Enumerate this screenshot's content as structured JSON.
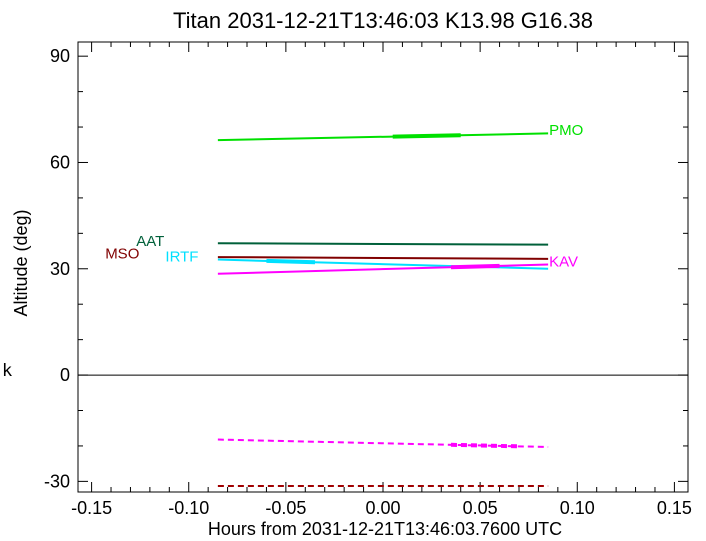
{
  "chart_data": {
    "type": "line",
    "title": "Titan 2031-12-21T13:46:03  K13.98  G16.38",
    "xlabel": "Hours from 2031-12-21T13:46:03.7600 UTC",
    "ylabel": "Altitude (deg)",
    "xlim": [
      -0.157,
      0.157
    ],
    "ylim": [
      -33,
      94
    ],
    "x_ticks": [
      -0.15,
      -0.1,
      -0.05,
      0.0,
      0.05,
      0.1,
      0.15
    ],
    "x_tick_labels": [
      "-0.15",
      "-0.10",
      "-0.05",
      "0.00",
      "0.05",
      "0.10",
      "0.15"
    ],
    "y_ticks": [
      -30,
      0,
      30,
      60,
      90
    ],
    "y_tick_labels": [
      "-30",
      "0",
      "30",
      "60",
      "90"
    ],
    "grid": false,
    "zero_line": 0,
    "series": [
      {
        "name": "PMO",
        "color": "#00e000",
        "x": [
          -0.085,
          0.085
        ],
        "y": [
          66.3,
          68.2
        ],
        "dash": false,
        "thick_segment": [
          0.005,
          0.04
        ]
      },
      {
        "name": "AAT",
        "color": "#00603a",
        "x": [
          -0.085,
          0.085
        ],
        "y": [
          37.2,
          36.8
        ],
        "dash": false
      },
      {
        "name": "MSO",
        "color": "#800000",
        "x": [
          -0.085,
          0.085
        ],
        "y": [
          33.3,
          32.8
        ],
        "dash": false
      },
      {
        "name": "IRTF",
        "color": "#00e0ff",
        "x": [
          -0.085,
          0.085
        ],
        "y": [
          32.6,
          30.0
        ],
        "dash": false,
        "thick_segment": [
          -0.06,
          -0.035
        ]
      },
      {
        "name": "KAV",
        "color": "#ff00ff",
        "x": [
          -0.085,
          0.085
        ],
        "y": [
          28.6,
          31.2
        ],
        "dash": false,
        "thick_segment": [
          0.035,
          0.06
        ]
      },
      {
        "name": "",
        "color": "#ff00ff",
        "x": [
          -0.085,
          0.085
        ],
        "y": [
          -18.2,
          -20.3
        ],
        "dash": true,
        "thick_segment": [
          0.035,
          0.07
        ]
      },
      {
        "name": "",
        "color": "#a00000",
        "x": [
          -0.085,
          0.085
        ],
        "y": [
          -31.3,
          -31.3
        ],
        "dash": true
      }
    ],
    "labels": [
      {
        "text": "PMO",
        "color": "#00e000",
        "x": 0.0855,
        "y": 69.1,
        "anchor": "start"
      },
      {
        "text": "AAT",
        "color": "#00603a",
        "x": -0.127,
        "y": 37.9,
        "anchor": "start"
      },
      {
        "text": "MSO",
        "color": "#800000",
        "x": -0.143,
        "y": 34.3,
        "anchor": "start"
      },
      {
        "text": "IRTF",
        "color": "#00e0ff",
        "x": -0.112,
        "y": 33.4,
        "anchor": "start"
      },
      {
        "text": "KAV",
        "color": "#ff00ff",
        "x": 0.0855,
        "y": 32.0,
        "anchor": "start"
      }
    ]
  },
  "side_glyph": "k"
}
